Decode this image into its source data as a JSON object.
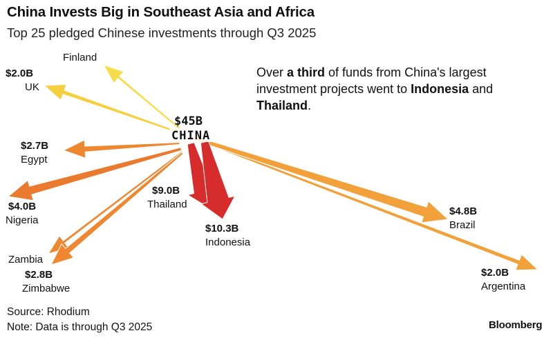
{
  "header": {
    "title": "China Invests Big in Southeast Asia and Africa",
    "subtitle": "Top 25 pledged Chinese investments through Q3 2025"
  },
  "annotation": {
    "part1": "Over ",
    "bold1": "a third",
    "part2": " of funds from China's largest investment projects went to ",
    "bold2": "Indonesia",
    "part3": " and ",
    "bold3": "Thailand",
    "part4": "."
  },
  "footer": {
    "source": "Source: Rhodium",
    "note": "Note: Data is through Q3 2025",
    "brand": "Bloomberg"
  },
  "chart_data": {
    "type": "flow-map",
    "origin": {
      "name": "CHINA",
      "total_label": "$45B",
      "total": 45
    },
    "unit": "billion USD",
    "flows": [
      {
        "destination": "Indonesia",
        "label": "$10.3B",
        "value": 10.3,
        "color": "#d62c2c"
      },
      {
        "destination": "Thailand",
        "label": "$9.0B",
        "value": 9.0,
        "color": "#d62c2c"
      },
      {
        "destination": "Brazil",
        "label": "$4.8B",
        "value": 4.8,
        "color": "#f2a03a"
      },
      {
        "destination": "Nigeria",
        "label": "$4.0B",
        "value": 4.0,
        "color": "#ea7a2e"
      },
      {
        "destination": "Zimbabwe",
        "label": "$2.8B",
        "value": 2.8,
        "color": "#ee8730"
      },
      {
        "destination": "Egypt",
        "label": "$2.7B",
        "value": 2.7,
        "color": "#ee8730"
      },
      {
        "destination": "UK",
        "label": "$2.0B",
        "value": 2.0,
        "color": "#f5cf3d"
      },
      {
        "destination": "Argentina",
        "label": "$2.0B",
        "value": 2.0,
        "color": "#f2a03a"
      },
      {
        "destination": "Finland",
        "label": "",
        "value": null,
        "color": "#f5dc4a"
      },
      {
        "destination": "Zambia",
        "label": "",
        "value": null,
        "color": "#ee8730"
      }
    ]
  }
}
